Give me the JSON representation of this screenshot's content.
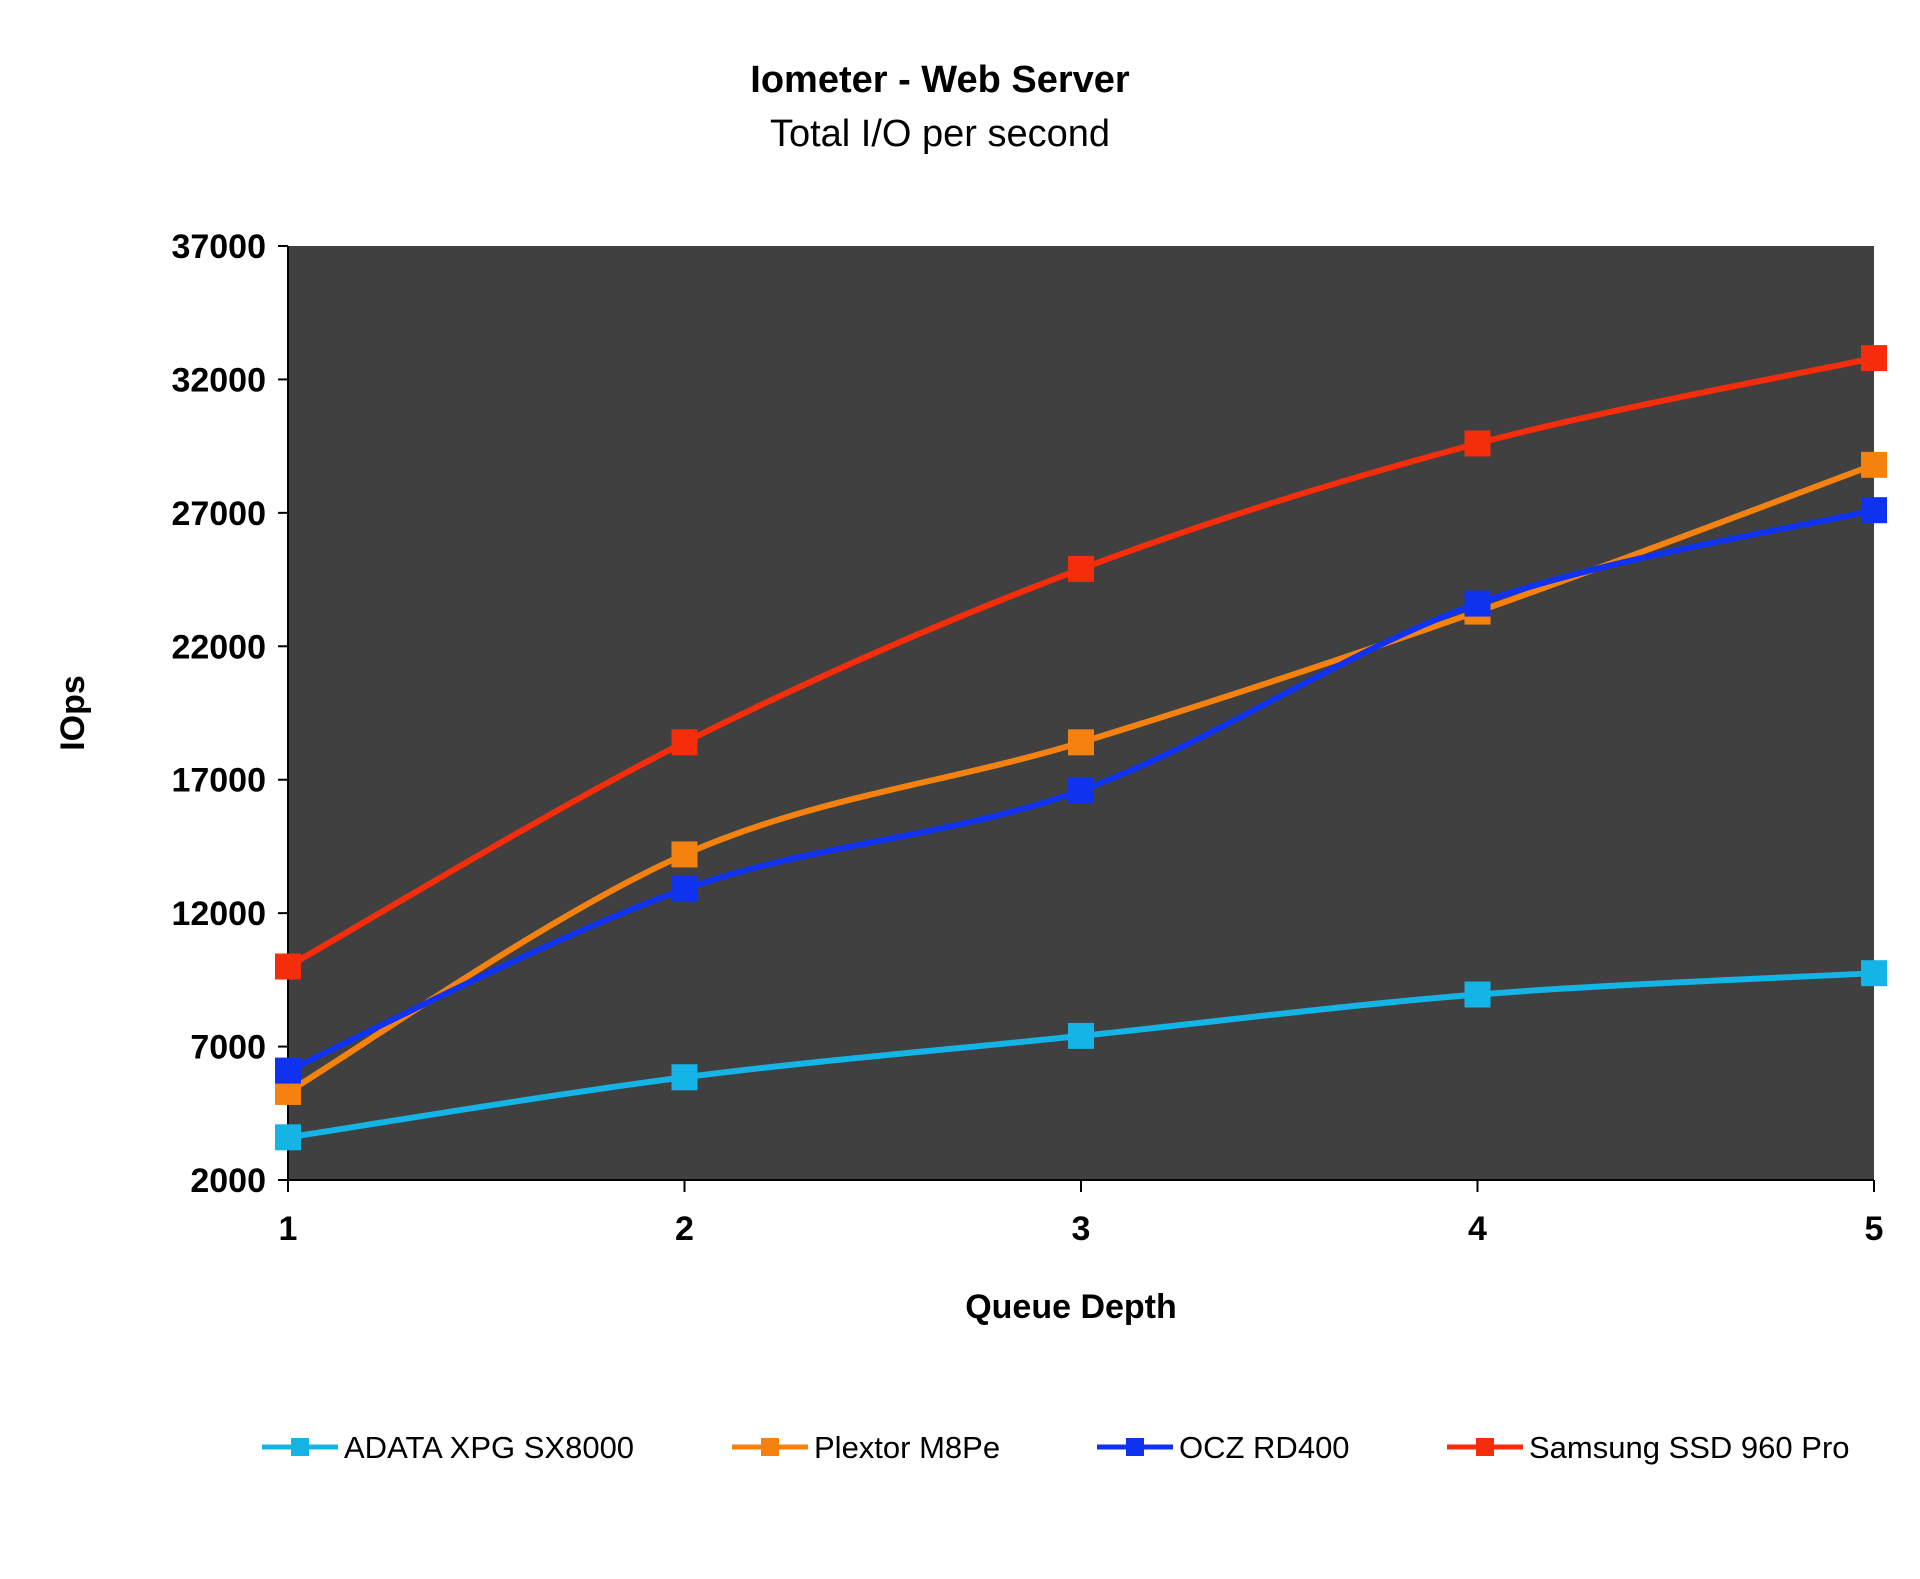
{
  "chart_data": {
    "type": "line",
    "title": "Iometer - Web Server",
    "subtitle": "Total I/O per second",
    "xlabel": "Queue Depth",
    "ylabel": "IOps",
    "x": [
      1,
      2,
      3,
      4,
      5
    ],
    "x_tick_labels": [
      "1",
      "2",
      "3",
      "4",
      "5"
    ],
    "ylim": [
      2000,
      37000
    ],
    "y_ticks": [
      2000,
      7000,
      12000,
      17000,
      22000,
      27000,
      32000,
      37000
    ],
    "y_tick_labels": [
      "2000",
      "7000",
      "12000",
      "17000",
      "22000",
      "27000",
      "32000",
      "37000"
    ],
    "grid": false,
    "plot_background": "#404040",
    "legend_position": "bottom",
    "series": [
      {
        "name": "ADATA XPG SX8000",
        "color": "#14b4e6",
        "values": [
          3600,
          5850,
          7400,
          8950,
          9750
        ]
      },
      {
        "name": "Plextor M8Pe",
        "color": "#f5820f",
        "values": [
          5300,
          14200,
          18400,
          23300,
          28800
        ]
      },
      {
        "name": "OCZ RD400",
        "color": "#0f32f0",
        "values": [
          6100,
          12900,
          16600,
          23600,
          27100
        ]
      },
      {
        "name": "Samsung SSD 960 Pro",
        "color": "#f52d0a",
        "values": [
          10000,
          18400,
          24900,
          29600,
          32800
        ]
      }
    ]
  }
}
